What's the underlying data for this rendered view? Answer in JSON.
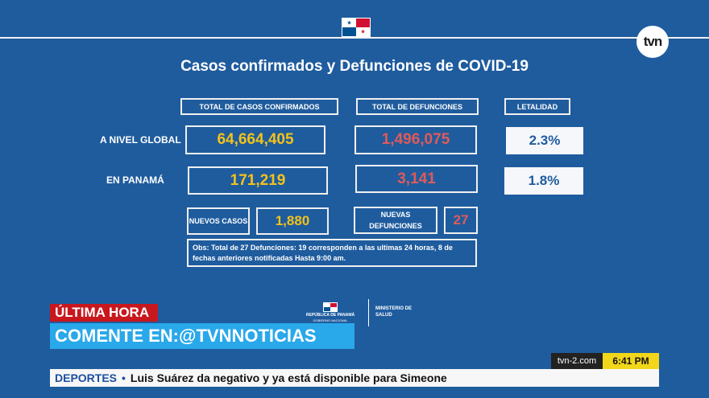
{
  "title": "Casos confirmados y Defunciones de COVID-19",
  "headers": {
    "cases": "TOTAL DE CASOS CONFIRMADOS",
    "deaths": "TOTAL DE DEFUNCIONES",
    "lethality": "LETALIDAD"
  },
  "global": {
    "label": "A NIVEL GLOBAL",
    "cases": "64,664,405",
    "deaths": "1,496,075",
    "lethality": "2.3%"
  },
  "panama": {
    "label": "EN PANAMÁ",
    "cases": "171,219",
    "deaths": "3,141",
    "lethality": "1.8%"
  },
  "new": {
    "cases_label": "NUEVOS CASOS",
    "cases": "1,880",
    "deaths_label": "NUEVAS DEFUNCIONES",
    "deaths": "27"
  },
  "obs": "Obs: Total de 27 Defunciones: 19 corresponden a las ultimas 24 horas, 8 de fechas anteriores notificadas   Hasta 9:00 am.",
  "ministry": {
    "republic": "REPÚBLICA DE PANAMÁ",
    "government": "GOBIERNO NACIONAL",
    "ministry": "MINISTERIO DE SALUD"
  },
  "channel_logo": "tvn",
  "breaking": "ÚLTIMA HORA",
  "comment": "COMENTE EN:@TVNNOTICIAS",
  "website": "tvn-2.com",
  "time": "6:41 PM",
  "ticker": {
    "section": "DEPORTES",
    "dot": "•",
    "headline": "Luis Suárez da negativo y ya está disponible para Simeone"
  },
  "colors": {
    "background": "#1f5c9e",
    "cases_value": "#f2c21b",
    "deaths_value": "#e05a5a",
    "breaking": "#c8181e",
    "comment": "#29a8ea",
    "clock": "#f2d61a"
  },
  "icons": [
    "panama-flag-icon",
    "tvn-logo-icon",
    "panama-coat-flag-icon"
  ]
}
